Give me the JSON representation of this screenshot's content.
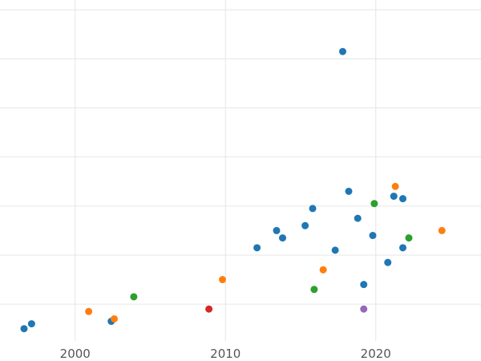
{
  "chart_data": {
    "type": "scatter",
    "title": "",
    "xlabel": "",
    "ylabel": "",
    "xlim": [
      1995,
      2027
    ],
    "ylim": [
      -0.5,
      13.4
    ],
    "x_ticks": [
      2000,
      2010,
      2020
    ],
    "x_tick_labels": [
      "2000",
      "2010",
      "2020"
    ],
    "y_gridlines": [
      1,
      3,
      5,
      7,
      9,
      11,
      13
    ],
    "grid": true,
    "legend": "none",
    "series": [
      {
        "color": "#1f77b4",
        "points": [
          {
            "x": 1996.6,
            "y": 0.0
          },
          {
            "x": 1997.1,
            "y": 0.2
          },
          {
            "x": 2002.4,
            "y": 0.3
          },
          {
            "x": 2012.1,
            "y": 3.3
          },
          {
            "x": 2013.4,
            "y": 4.0
          },
          {
            "x": 2013.8,
            "y": 3.7
          },
          {
            "x": 2015.3,
            "y": 4.2
          },
          {
            "x": 2015.8,
            "y": 4.9
          },
          {
            "x": 2017.3,
            "y": 3.2
          },
          {
            "x": 2017.8,
            "y": 11.3
          },
          {
            "x": 2018.2,
            "y": 5.6
          },
          {
            "x": 2018.8,
            "y": 4.5
          },
          {
            "x": 2019.2,
            "y": 1.8
          },
          {
            "x": 2019.8,
            "y": 3.8
          },
          {
            "x": 2020.8,
            "y": 2.7
          },
          {
            "x": 2021.2,
            "y": 5.4
          },
          {
            "x": 2021.8,
            "y": 3.3
          },
          {
            "x": 2021.8,
            "y": 5.3
          }
        ]
      },
      {
        "color": "#ff7f0e",
        "points": [
          {
            "x": 2000.9,
            "y": 0.7
          },
          {
            "x": 2002.6,
            "y": 0.4
          },
          {
            "x": 2009.8,
            "y": 2.0
          },
          {
            "x": 2016.5,
            "y": 2.4
          },
          {
            "x": 2021.3,
            "y": 5.8
          },
          {
            "x": 2024.4,
            "y": 4.0
          }
        ]
      },
      {
        "color": "#2ca02c",
        "points": [
          {
            "x": 2003.9,
            "y": 1.3
          },
          {
            "x": 2015.9,
            "y": 1.6
          },
          {
            "x": 2019.9,
            "y": 5.1
          },
          {
            "x": 2022.2,
            "y": 3.7
          }
        ]
      },
      {
        "color": "#d62728",
        "points": [
          {
            "x": 2008.9,
            "y": 0.8
          }
        ]
      },
      {
        "color": "#9467bd",
        "points": [
          {
            "x": 2019.2,
            "y": 0.8
          }
        ]
      }
    ]
  }
}
